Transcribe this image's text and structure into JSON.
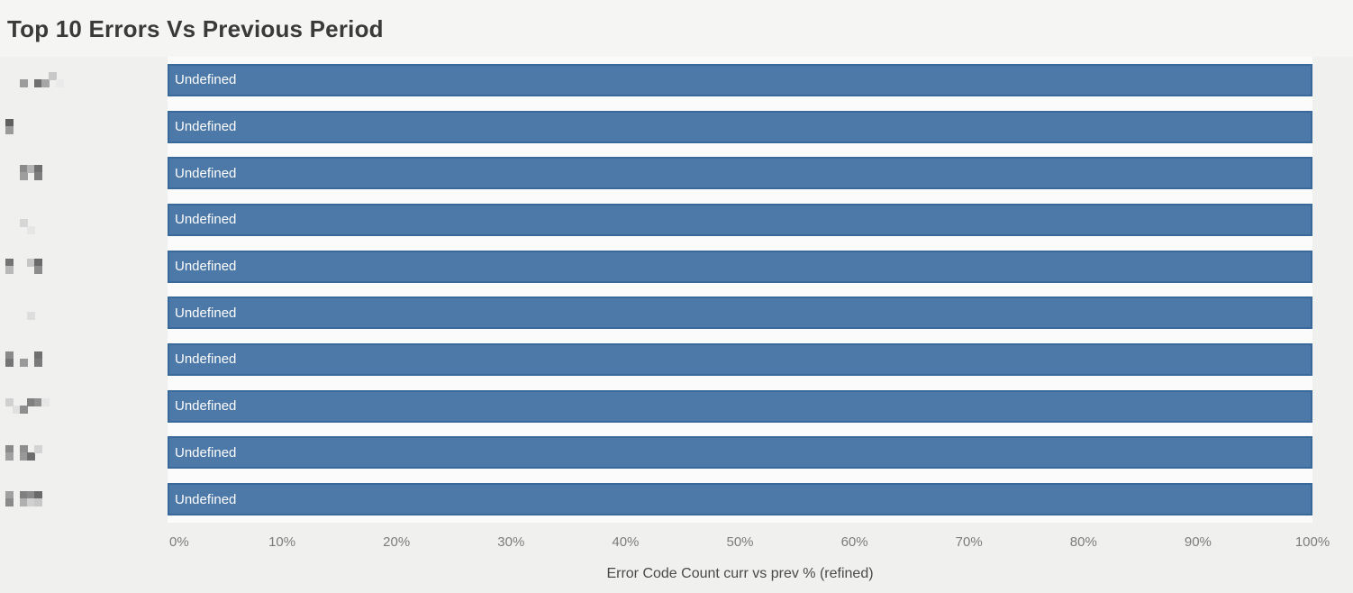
{
  "title_bar": {
    "title": "Top 10 Errors Vs Previous Period"
  },
  "chart_data": {
    "type": "bar",
    "orientation": "horizontal",
    "title": "Top 10 Errors Vs Previous Period",
    "xlabel": "Error Code Count curr vs prev % (refined)",
    "x_ticks": [
      "0%",
      "10%",
      "20%",
      "30%",
      "40%",
      "50%",
      "60%",
      "70%",
      "80%",
      "90%",
      "100%"
    ],
    "xlim": [
      0,
      100
    ],
    "grid": "off",
    "legend": "none",
    "categories": [
      "[redacted]",
      "[redacted]",
      "[redacted]",
      "[redacted]",
      "[redacted]",
      "[redacted]",
      "[redacted]",
      "[redacted]",
      "[redacted]",
      "[redacted]"
    ],
    "series": [
      {
        "name": "Error Code Count curr vs prev % (refined)",
        "values": [
          100,
          100,
          100,
          100,
          100,
          100,
          100,
          100,
          100,
          100
        ]
      }
    ],
    "bar_value_labels": [
      "Undefined",
      "Undefined",
      "Undefined",
      "Undefined",
      "Undefined",
      "Undefined",
      "Undefined",
      "Undefined",
      "Undefined",
      "Undefined"
    ]
  },
  "rows": [
    {
      "bar_label": "Undefined",
      "value_pct": 100,
      "redacted_pixels": [
        [
          2,
          1,
          "#9c9c9c"
        ],
        [
          4,
          1,
          "#6f6f6f"
        ],
        [
          5,
          1,
          "#a6a6a6"
        ],
        [
          6,
          0,
          "#c8c8c8"
        ],
        [
          7,
          1,
          "#eaeaea"
        ]
      ]
    },
    {
      "bar_label": "Undefined",
      "value_pct": 100,
      "redacted_pixels": [
        [
          0,
          0,
          "#5f5f5f"
        ],
        [
          0,
          1,
          "#9a9a9a"
        ]
      ]
    },
    {
      "bar_label": "Undefined",
      "value_pct": 100,
      "redacted_pixels": [
        [
          2,
          0,
          "#8a8a8a"
        ],
        [
          2,
          1,
          "#9e9e9e"
        ],
        [
          3,
          0,
          "#b4b4b4"
        ],
        [
          4,
          0,
          "#6f6f6f"
        ],
        [
          4,
          1,
          "#7e7e7e"
        ]
      ]
    },
    {
      "bar_label": "Undefined",
      "value_pct": 100,
      "redacted_pixels": [
        [
          2,
          1,
          "#d6d6d6"
        ],
        [
          3,
          2,
          "#e6e6e6"
        ]
      ]
    },
    {
      "bar_label": "Undefined",
      "value_pct": 100,
      "redacted_pixels": [
        [
          0,
          0,
          "#737373"
        ],
        [
          0,
          1,
          "#b8b8b8"
        ],
        [
          3,
          0,
          "#c6c6c6"
        ],
        [
          4,
          0,
          "#6a6a6a"
        ],
        [
          4,
          1,
          "#8c8c8c"
        ]
      ]
    },
    {
      "bar_label": "Undefined",
      "value_pct": 100,
      "redacted_pixels": [
        [
          3,
          1,
          "#dedede"
        ]
      ]
    },
    {
      "bar_label": "Undefined",
      "value_pct": 100,
      "redacted_pixels": [
        [
          0,
          0,
          "#8a8a8a"
        ],
        [
          0,
          1,
          "#757575"
        ],
        [
          2,
          1,
          "#9a9a9a"
        ],
        [
          4,
          0,
          "#6f6f6f"
        ],
        [
          4,
          1,
          "#7a7a7a"
        ]
      ]
    },
    {
      "bar_label": "Undefined",
      "value_pct": 100,
      "redacted_pixels": [
        [
          0,
          0,
          "#d0d0d0"
        ],
        [
          1,
          1,
          "#e0e0e0"
        ],
        [
          2,
          1,
          "#8e8e8e"
        ],
        [
          3,
          0,
          "#808080"
        ],
        [
          4,
          0,
          "#909090"
        ],
        [
          5,
          0,
          "#e6e6e6"
        ]
      ]
    },
    {
      "bar_label": "Undefined",
      "value_pct": 100,
      "redacted_pixels": [
        [
          0,
          0,
          "#8a8a8a"
        ],
        [
          0,
          1,
          "#a0a0a0"
        ],
        [
          2,
          0,
          "#8e8e8e"
        ],
        [
          2,
          1,
          "#999999"
        ],
        [
          3,
          1,
          "#6e6e6e"
        ],
        [
          4,
          0,
          "#d4d4d4"
        ]
      ]
    },
    {
      "bar_label": "Undefined",
      "value_pct": 100,
      "redacted_pixels": [
        [
          0,
          0,
          "#a0a0a0"
        ],
        [
          0,
          1,
          "#8a8a8a"
        ],
        [
          2,
          0,
          "#808080"
        ],
        [
          2,
          1,
          "#b0b0b0"
        ],
        [
          3,
          0,
          "#8a8a8a"
        ],
        [
          3,
          1,
          "#d0d0d0"
        ],
        [
          4,
          0,
          "#6a6a6a"
        ],
        [
          4,
          1,
          "#c8c8c8"
        ]
      ]
    }
  ],
  "colors": {
    "page_background": "#f0f0ee",
    "title_background": "#f5f5f3",
    "plot_background": "#fbfbfb",
    "bar_fill": "#4d79a8",
    "bar_border": "#39689a",
    "bar_label_text": "#fdfdfd",
    "title_text": "#3a3a3a",
    "tick_text": "#7c7c7c",
    "axis_title_text": "#4a4a4a"
  }
}
